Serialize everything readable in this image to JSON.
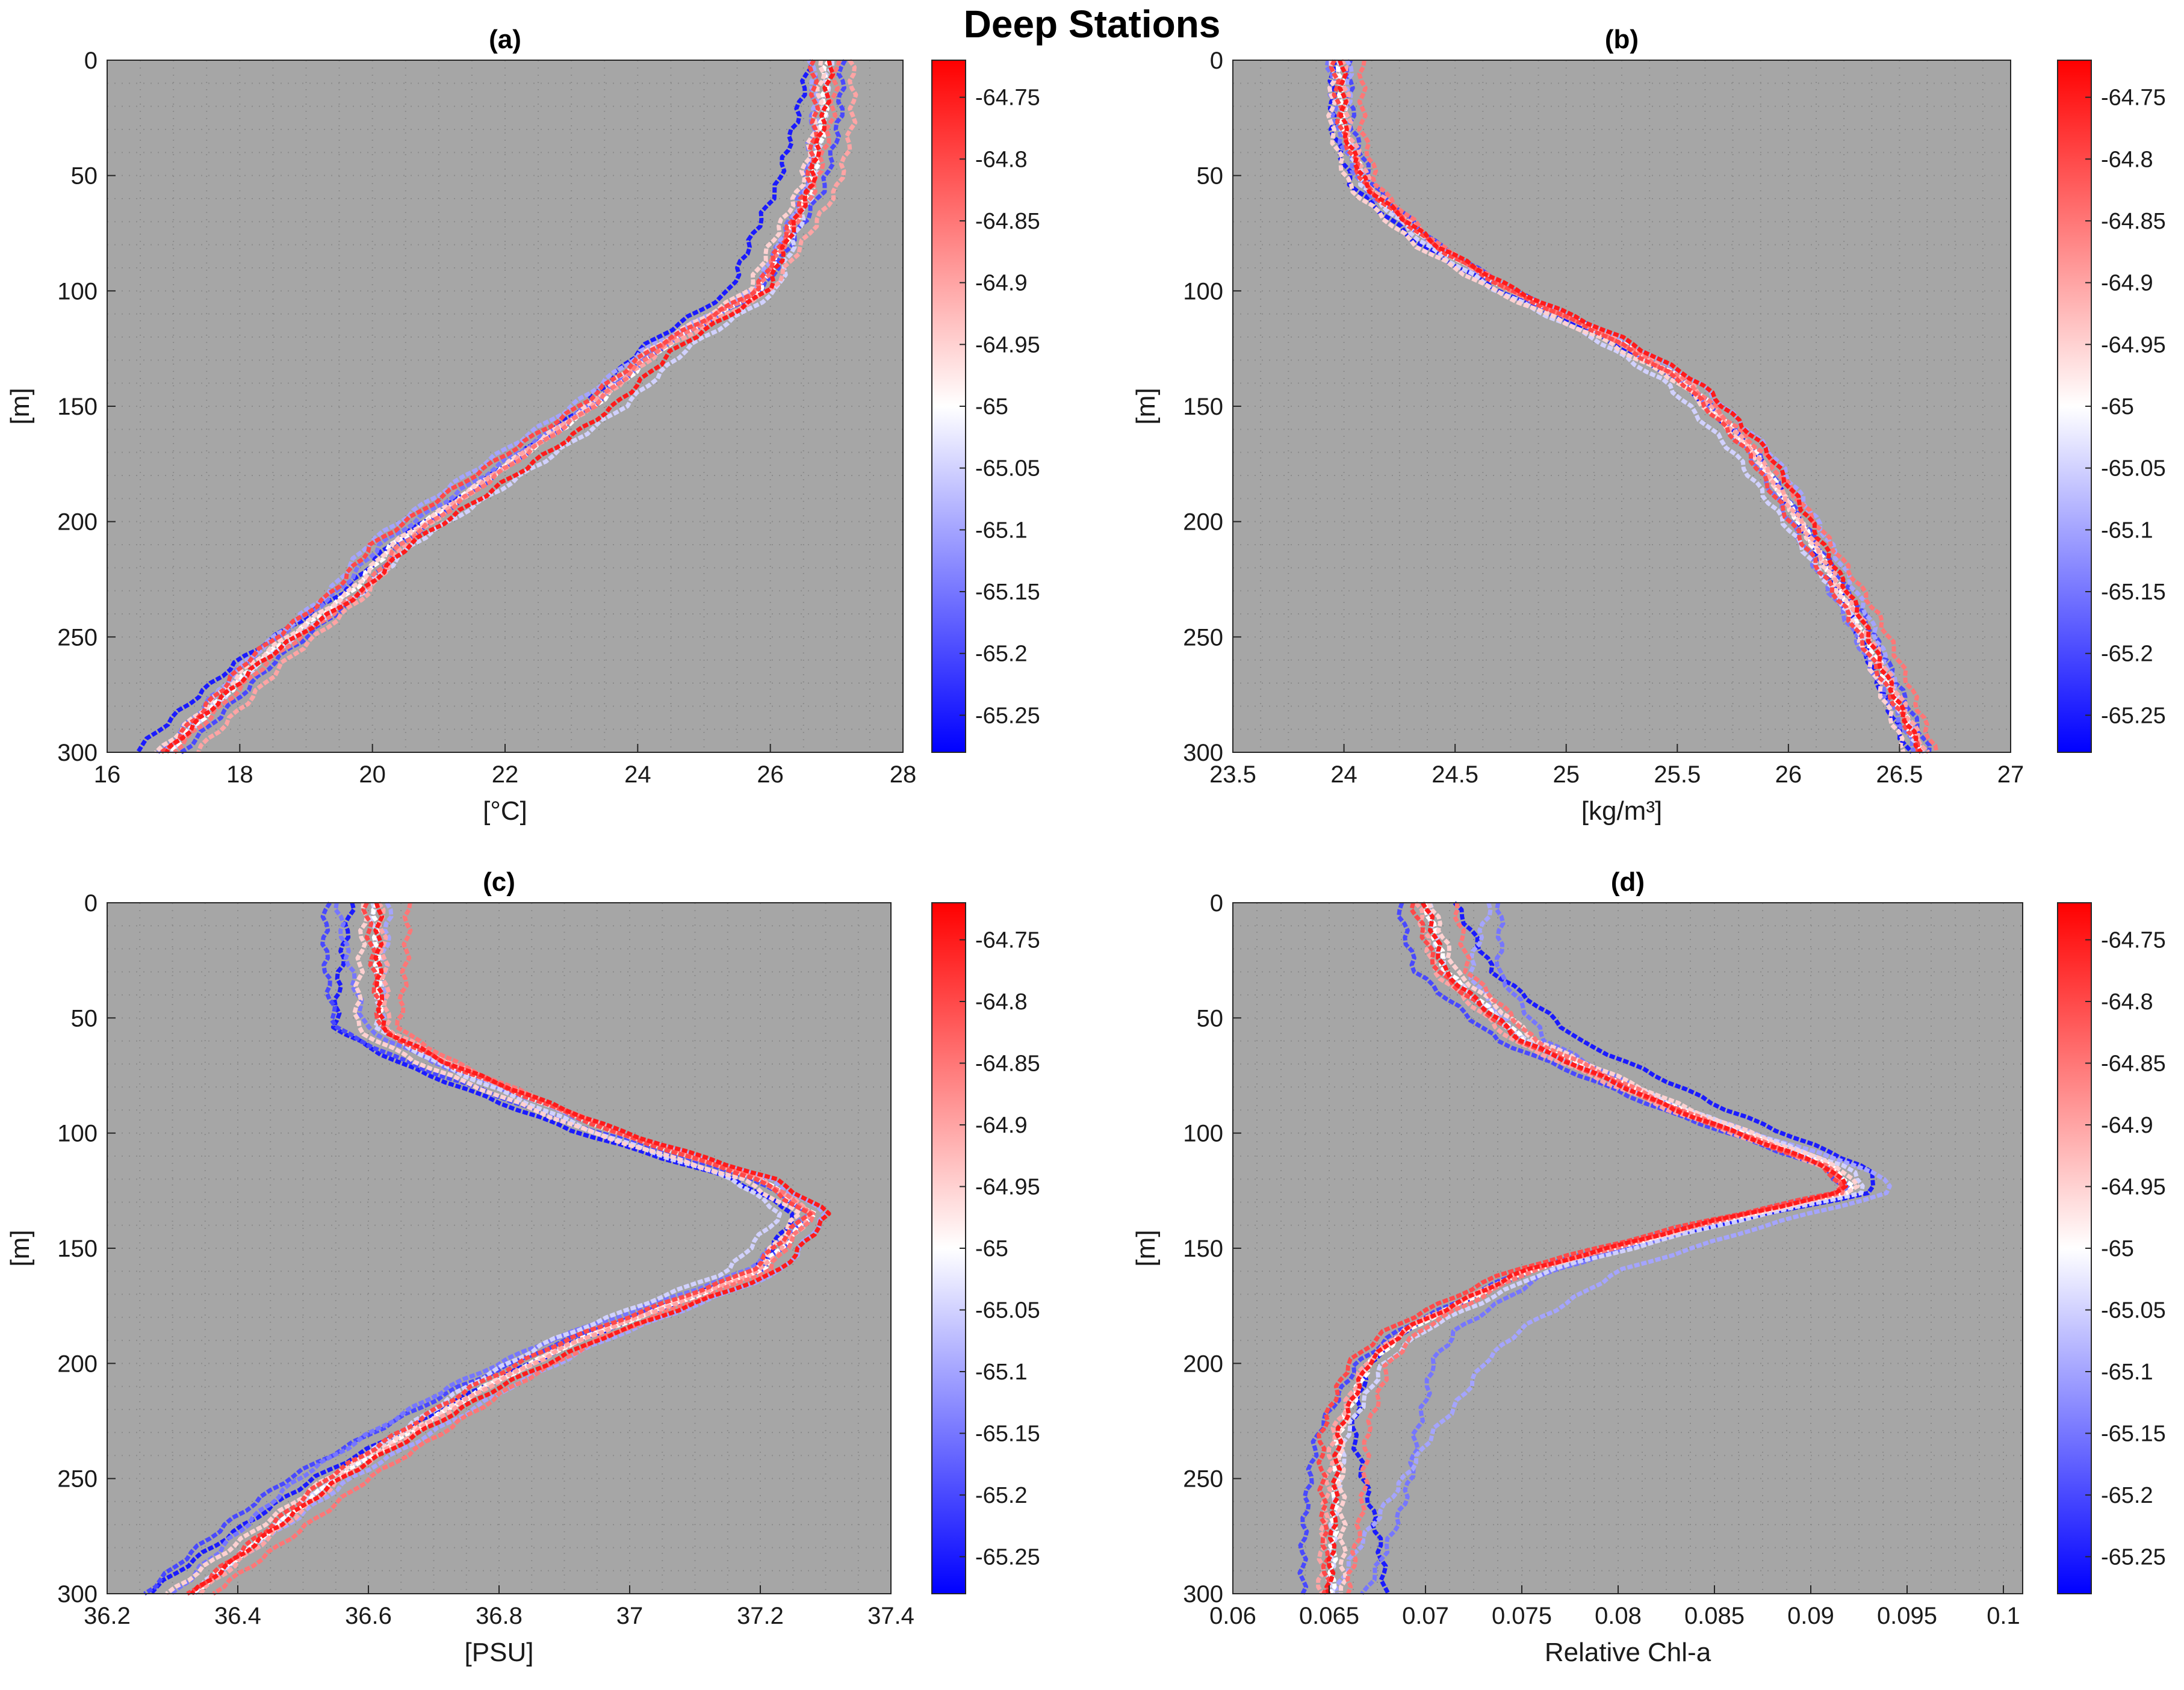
{
  "figure_title": "Deep Stations",
  "colorbar": {
    "min": -65.28,
    "max": -64.72,
    "ticks": [
      -64.75,
      -64.8,
      -64.85,
      -64.9,
      -64.95,
      -65,
      -65.05,
      -65.1,
      -65.15,
      -65.2,
      -65.25
    ],
    "tick_labels": [
      "-64.75",
      "-64.8",
      "-64.85",
      "-64.9",
      "-64.95",
      "-65",
      "-65.05",
      "-65.1",
      "-65.15",
      "-65.2",
      "-65.25"
    ],
    "colormap": [
      "#0000ff",
      "#ffffff",
      "#ff0000"
    ]
  },
  "colors": {
    "axes_background": "#a6a6a6",
    "grid": "#8c8c8c"
  },
  "chart_data": [
    {
      "id": "a",
      "type": "line",
      "title": "(a)",
      "xlabel": "[°C]",
      "ylabel": "[m]",
      "xlim": [
        16,
        28
      ],
      "ylim": [
        0,
        300
      ],
      "y_reversed": true,
      "xticks": [
        16,
        18,
        20,
        22,
        24,
        26,
        28
      ],
      "xtick_labels": [
        "16",
        "18",
        "20",
        "22",
        "24",
        "26",
        "28"
      ],
      "yticks": [
        0,
        50,
        100,
        150,
        200,
        250,
        300
      ],
      "ytick_labels": [
        "0",
        "50",
        "100",
        "150",
        "200",
        "250",
        "300"
      ],
      "mean_profile": {
        "depth": [
          0,
          25,
          55,
          100,
          125,
          150,
          180,
          210,
          230,
          260,
          300
        ],
        "value": [
          26.85,
          26.8,
          26.6,
          25.8,
          24.3,
          23.3,
          21.8,
          20.3,
          19.7,
          18.3,
          16.9
        ]
      },
      "series": [
        {
          "station_lon": -64.75,
          "offset": 0.35
        },
        {
          "station_lon": -64.8,
          "offset": -0.3
        },
        {
          "station_lon": -64.85,
          "offset": 0.15
        },
        {
          "station_lon": -64.9,
          "offset": 0.45
        },
        {
          "station_lon": -64.95,
          "offset": -0.15
        },
        {
          "station_lon": -65.0,
          "offset": 0.05
        },
        {
          "station_lon": -65.05,
          "offset": 0.5
        },
        {
          "station_lon": -65.1,
          "offset": -0.4
        },
        {
          "station_lon": -65.15,
          "offset": -0.2
        },
        {
          "station_lon": -65.2,
          "offset": 0.25
        },
        {
          "station_lon": -65.25,
          "offset": -0.5
        }
      ]
    },
    {
      "id": "b",
      "type": "line",
      "title": "(b)",
      "xlabel": "[kg/m³]",
      "ylabel": "[m]",
      "xlim": [
        23.5,
        27
      ],
      "ylim": [
        0,
        300
      ],
      "y_reversed": true,
      "xticks": [
        23.5,
        24,
        24.5,
        25,
        25.5,
        26,
        26.5,
        27
      ],
      "xtick_labels": [
        "23.5",
        "24",
        "24.5",
        "25",
        "25.5",
        "26",
        "26.5",
        "27"
      ],
      "yticks": [
        0,
        50,
        100,
        150,
        200,
        250,
        300
      ],
      "ytick_labels": [
        "0",
        "50",
        "100",
        "150",
        "200",
        "250",
        "300"
      ],
      "mean_profile": {
        "depth": [
          0,
          30,
          55,
          80,
          100,
          120,
          140,
          170,
          200,
          240,
          270,
          300
        ],
        "value": [
          23.98,
          24.0,
          24.1,
          24.4,
          24.75,
          25.2,
          25.55,
          25.85,
          26.05,
          26.3,
          26.45,
          26.6
        ]
      },
      "series": [
        {
          "station_lon": -64.75,
          "offset": 0.06
        },
        {
          "station_lon": -64.8,
          "offset": -0.04
        },
        {
          "station_lon": -64.85,
          "offset": 0.1
        },
        {
          "station_lon": -64.9,
          "offset": 0.02
        },
        {
          "station_lon": -64.95,
          "offset": -0.08
        },
        {
          "station_lon": -65.0,
          "offset": 0.0
        },
        {
          "station_lon": -65.05,
          "offset": -0.1
        },
        {
          "station_lon": -65.1,
          "offset": 0.08
        },
        {
          "station_lon": -65.15,
          "offset": -0.05
        },
        {
          "station_lon": -65.2,
          "offset": 0.04
        },
        {
          "station_lon": -65.25,
          "offset": -0.06
        }
      ]
    },
    {
      "id": "c",
      "type": "line",
      "title": "(c)",
      "xlabel": "[PSU]",
      "ylabel": "[m]",
      "xlim": [
        36.2,
        37.4
      ],
      "ylim": [
        0,
        300
      ],
      "y_reversed": true,
      "xticks": [
        36.2,
        36.4,
        36.6,
        36.8,
        37,
        37.2,
        37.4
      ],
      "xtick_labels": [
        "36.2",
        "36.4",
        "36.6",
        "36.8",
        "37",
        "37.2",
        "37.4"
      ],
      "yticks": [
        0,
        50,
        100,
        150,
        200,
        250,
        300
      ],
      "ytick_labels": [
        "0",
        "50",
        "100",
        "150",
        "200",
        "250",
        "300"
      ],
      "mean_profile": {
        "depth": [
          0,
          55,
          70,
          100,
          120,
          135,
          160,
          190,
          210,
          250,
          300
        ],
        "value": [
          36.61,
          36.62,
          36.72,
          36.98,
          37.2,
          37.28,
          37.2,
          36.92,
          36.78,
          36.55,
          36.33
        ]
      },
      "series": [
        {
          "station_lon": -64.75,
          "offset": 0.03
        },
        {
          "station_lon": -64.8,
          "offset": -0.02
        },
        {
          "station_lon": -64.85,
          "offset": 0.05
        },
        {
          "station_lon": -64.9,
          "offset": 0.01
        },
        {
          "station_lon": -64.95,
          "offset": -0.04
        },
        {
          "station_lon": -65.0,
          "offset": 0.0
        },
        {
          "station_lon": -65.05,
          "offset": -0.05
        },
        {
          "station_lon": -65.1,
          "offset": 0.04
        },
        {
          "station_lon": -65.15,
          "offset": -0.06
        },
        {
          "station_lon": -65.2,
          "offset": -0.08
        },
        {
          "station_lon": -65.25,
          "offset": -0.07
        }
      ]
    },
    {
      "id": "d",
      "type": "line",
      "title": "(d)",
      "xlabel": "Relative Chl-a",
      "ylabel": "[m]",
      "xlim": [
        0.06,
        0.101
      ],
      "ylim": [
        0,
        300
      ],
      "y_reversed": true,
      "xticks": [
        0.06,
        0.065,
        0.07,
        0.075,
        0.08,
        0.085,
        0.09,
        0.095,
        0.1
      ],
      "xtick_labels": [
        "0.06",
        "0.065",
        "0.07",
        "0.075",
        "0.08",
        "0.085",
        "0.09",
        "0.095",
        "0.1"
      ],
      "yticks": [
        0,
        50,
        100,
        150,
        200,
        250,
        300
      ],
      "ytick_labels": [
        "0",
        "50",
        "100",
        "150",
        "200",
        "250",
        "300"
      ],
      "mean_profile": {
        "depth": [
          0,
          30,
          60,
          90,
          115,
          125,
          140,
          160,
          185,
          200,
          230,
          300
        ],
        "value": [
          0.07,
          0.071,
          0.075,
          0.083,
          0.091,
          0.092,
          0.084,
          0.075,
          0.069,
          0.067,
          0.0655,
          0.065
        ]
      },
      "series": [
        {
          "station_lon": -64.75,
          "offset": 0.0
        },
        {
          "station_lon": -64.8,
          "offset": -0.001
        },
        {
          "station_lon": -64.85,
          "offset": 0.0015
        },
        {
          "station_lon": -64.9,
          "offset": -0.0005
        },
        {
          "station_lon": -64.95,
          "offset": 0.0008
        },
        {
          "station_lon": -65.0,
          "offset": 0.0003
        },
        {
          "station_lon": -65.05,
          "offset": 0.0012
        },
        {
          "station_lon": -65.1,
          "offset": 0.006
        },
        {
          "station_lon": -65.15,
          "offset": 0.004
        },
        {
          "station_lon": -65.2,
          "offset": -0.0015
        },
        {
          "station_lon": -65.25,
          "offset": 0.003
        }
      ]
    }
  ]
}
